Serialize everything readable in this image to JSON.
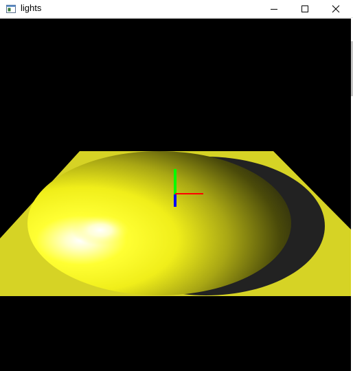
{
  "window": {
    "title": "lights",
    "controls": {
      "minimize": "minimize",
      "maximize": "maximize",
      "close": "close"
    }
  },
  "scene": {
    "background": "#000000",
    "plane_color": "#d6d325",
    "sphere_color": "#ffff1a",
    "highlight_color": "#ffffff",
    "shadow_color": "#222222",
    "axes": {
      "x_color": "#ff0000",
      "y_color": "#00ff00",
      "z_color": "#0000ff"
    }
  }
}
